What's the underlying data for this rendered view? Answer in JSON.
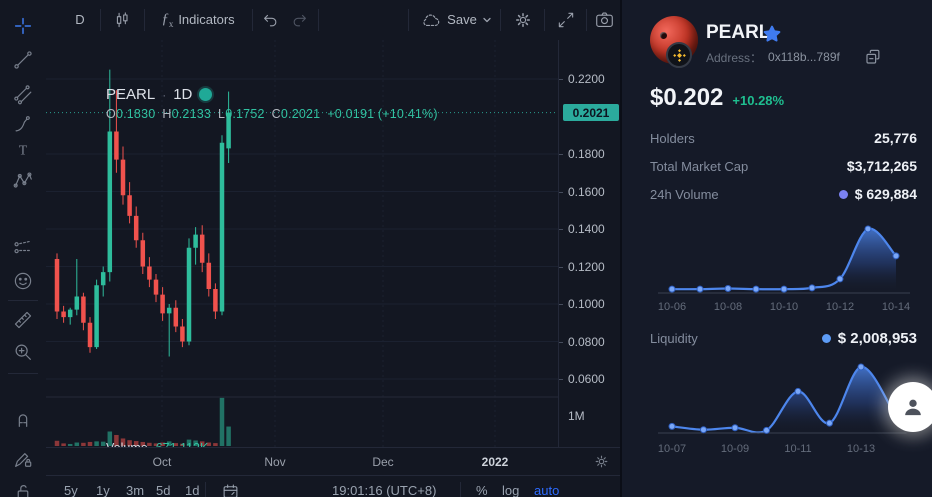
{
  "toolbar": {
    "interval": "D",
    "indicators_label": "Indicators",
    "save_label": "Save"
  },
  "legend": {
    "symbol": "PEARL",
    "separator": "·",
    "interval": "1D",
    "o_label": "O",
    "o": "0.1830",
    "h_label": "H",
    "h": "0.2133",
    "l_label": "L",
    "l": "0.1752",
    "c_label": "C",
    "c": "0.2021",
    "change": "+0.0191 (+10.41%)"
  },
  "volume_pane": {
    "label": "Volume",
    "value": "671.112K"
  },
  "price_axis": {
    "ticks": [
      "0.2200",
      "0.1800",
      "0.1600",
      "0.1400",
      "0.1200",
      "0.1000",
      "0.0800",
      "0.0600"
    ],
    "tick_values": [
      0.22,
      0.18,
      0.16,
      0.14,
      0.12,
      0.1,
      0.08,
      0.06
    ],
    "current": "0.2021",
    "current_value": 0.2021,
    "volume_tick": "1M"
  },
  "time_axis": {
    "labels": [
      "Oct",
      "Nov",
      "Dec",
      "2022"
    ]
  },
  "bottom_bar": {
    "ranges": [
      "5y",
      "1y",
      "3m",
      "5d",
      "1d"
    ],
    "clock": "19:01:16 (UTC+8)",
    "percent": "%",
    "log": "log",
    "auto": "auto"
  },
  "token": {
    "name": "PEARL",
    "address_label": "Address：",
    "address": "0x118b...789f",
    "price": "$0.202",
    "change": "+10.28%"
  },
  "stats": [
    {
      "label": "Holders",
      "value": "25,776",
      "dot": null
    },
    {
      "label": "Total Market Cap",
      "value": "$3,712,265",
      "dot": null
    },
    {
      "label": "24h Volume",
      "value": "$ 629,884",
      "dot": "#7b82f2"
    }
  ],
  "liquidity": {
    "label": "Liquidity",
    "value": "$ 2,008,953",
    "dot": "#5d9cf6"
  },
  "colors": {
    "up": "#2ebd9c",
    "down": "#f0524d",
    "accent_teal": "#31c0a0",
    "price_tag_bg": "#2bab9d",
    "spark_line": "#4d86ec",
    "auto_blue": "#2d6bff",
    "active_tool_blue": "#3d7bf0"
  },
  "chart_data": [
    {
      "type": "candlestick",
      "title": "PEARL 1D",
      "note": "columns: open, high, low, close, volume_K; last candle matches legend OHLC",
      "x_axis_labels": [
        "Oct",
        "Nov",
        "Dec",
        "2022"
      ],
      "y_ticks": [
        0.22,
        0.18,
        0.16,
        0.14,
        0.12,
        0.1,
        0.08,
        0.06
      ],
      "last_close": 0.2021,
      "volume_axis_tick": "1M",
      "candles": [
        [
          0.124,
          0.127,
          0.092,
          0.096,
          180
        ],
        [
          0.096,
          0.099,
          0.09,
          0.093,
          90
        ],
        [
          0.093,
          0.098,
          0.089,
          0.097,
          70
        ],
        [
          0.097,
          0.124,
          0.094,
          0.104,
          120
        ],
        [
          0.104,
          0.106,
          0.086,
          0.09,
          110
        ],
        [
          0.09,
          0.093,
          0.074,
          0.077,
          140
        ],
        [
          0.077,
          0.113,
          0.076,
          0.11,
          160
        ],
        [
          0.11,
          0.12,
          0.104,
          0.117,
          150
        ],
        [
          0.117,
          0.225,
          0.112,
          0.192,
          500
        ],
        [
          0.192,
          0.214,
          0.17,
          0.177,
          380
        ],
        [
          0.177,
          0.184,
          0.153,
          0.158,
          260
        ],
        [
          0.158,
          0.165,
          0.143,
          0.147,
          200
        ],
        [
          0.147,
          0.152,
          0.13,
          0.134,
          170
        ],
        [
          0.134,
          0.138,
          0.116,
          0.12,
          140
        ],
        [
          0.12,
          0.125,
          0.109,
          0.113,
          110
        ],
        [
          0.113,
          0.116,
          0.101,
          0.105,
          90
        ],
        [
          0.105,
          0.109,
          0.091,
          0.095,
          120
        ],
        [
          0.095,
          0.1,
          0.072,
          0.098,
          160
        ],
        [
          0.098,
          0.102,
          0.085,
          0.088,
          100
        ],
        [
          0.088,
          0.092,
          0.077,
          0.08,
          80
        ],
        [
          0.08,
          0.135,
          0.078,
          0.13,
          220
        ],
        [
          0.13,
          0.141,
          0.121,
          0.137,
          190
        ],
        [
          0.137,
          0.142,
          0.117,
          0.122,
          160
        ],
        [
          0.122,
          0.127,
          0.104,
          0.108,
          120
        ],
        [
          0.108,
          0.111,
          0.092,
          0.096,
          100
        ],
        [
          0.096,
          0.19,
          0.094,
          0.186,
          1660
        ],
        [
          0.183,
          0.2133,
          0.1752,
          0.2021,
          671
        ]
      ]
    },
    {
      "type": "area",
      "name": "24h Volume trend",
      "x": [
        "10-06",
        "10-07",
        "10-08",
        "10-09",
        "10-10",
        "10-11",
        "10-12",
        "10-13",
        "10-14"
      ],
      "values_normalized": [
        0.06,
        0.06,
        0.07,
        0.06,
        0.06,
        0.08,
        0.22,
        1.0,
        0.58
      ],
      "shown_x_labels": [
        "10-06",
        "10-08",
        "10-10",
        "10-12",
        "10-14"
      ],
      "latest_value_label": "$ 629,884"
    },
    {
      "type": "area",
      "name": "Liquidity trend",
      "x": [
        "10-07",
        "10-08",
        "10-09",
        "10-10",
        "10-11",
        "10-12",
        "10-13",
        "10-14"
      ],
      "values_normalized": [
        0.1,
        0.05,
        0.08,
        0.04,
        0.63,
        0.15,
        1.0,
        0.35
      ],
      "shown_x_labels": [
        "10-07",
        "10-09",
        "10-11",
        "10-13"
      ],
      "latest_value_label": "$ 2,008,953"
    }
  ]
}
